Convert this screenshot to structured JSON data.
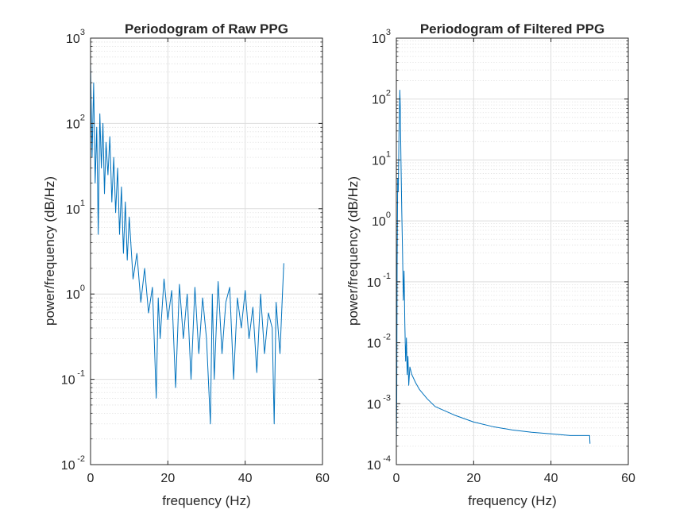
{
  "chart_data": [
    {
      "type": "line",
      "title": "Periodogram of Raw PPG",
      "xlabel": "frequency (Hz)",
      "ylabel": "power/frequency (dB/Hz)",
      "xlim": [
        0,
        60
      ],
      "ylim": [
        0.01,
        1000
      ],
      "yscale": "log",
      "xticks": [
        0,
        20,
        40,
        60
      ],
      "yticks": [
        0.01,
        0.1,
        1,
        10,
        100,
        1000
      ],
      "ytick_exponents": [
        "-2",
        "-1",
        "0",
        "1",
        "2",
        "3"
      ],
      "grid": true,
      "line_color": "#0072BD",
      "series": [
        {
          "x": [
            0,
            0.4,
            0.8,
            1.2,
            1.6,
            2.0,
            2.4,
            2.8,
            3.2,
            3.6,
            4.0,
            4.5,
            5.0,
            5.5,
            6.0,
            6.5,
            7.0,
            7.5,
            8.0,
            8.5,
            9.0,
            9.5,
            10,
            11,
            12,
            13,
            14,
            15,
            16,
            17,
            17.5,
            18,
            19,
            20,
            21,
            22,
            23,
            24,
            25,
            26,
            27,
            28,
            29,
            30,
            31,
            31.5,
            32,
            33,
            34,
            35,
            36,
            37,
            38,
            39,
            40,
            41,
            42,
            43,
            44,
            45,
            46,
            47,
            47.5,
            48,
            49,
            49.5,
            50
          ],
          "values": [
            500,
            40,
            300,
            20,
            90,
            5,
            130,
            30,
            100,
            15,
            60,
            25,
            70,
            12,
            40,
            9,
            30,
            5,
            18,
            3,
            12,
            2.5,
            8,
            1.5,
            3,
            0.8,
            2,
            0.6,
            1.2,
            0.06,
            0.9,
            0.3,
            1.5,
            0.5,
            1.1,
            0.08,
            1.3,
            0.3,
            1.0,
            0.1,
            1.2,
            0.2,
            0.9,
            0.3,
            0.03,
            1.0,
            0.1,
            1.4,
            0.2,
            0.8,
            1.2,
            0.1,
            0.9,
            0.4,
            1.1,
            0.3,
            0.7,
            0.12,
            1.0,
            0.2,
            0.6,
            0.4,
            0.03,
            0.8,
            0.2,
            0.7,
            2.3
          ]
        }
      ]
    },
    {
      "type": "line",
      "title": "Periodogram of Filtered PPG",
      "xlabel": "frequency (Hz)",
      "ylabel": "power/frequency (dB/Hz)",
      "xlim": [
        0,
        60
      ],
      "ylim": [
        0.0001,
        1000
      ],
      "yscale": "log",
      "xticks": [
        0,
        20,
        40,
        60
      ],
      "yticks": [
        0.0001,
        0.001,
        0.01,
        0.1,
        1,
        10,
        100,
        1000
      ],
      "ytick_exponents": [
        "-4",
        "-3",
        "-2",
        "-1",
        "0",
        "1",
        "2",
        "3"
      ],
      "grid": true,
      "line_color": "#0072BD",
      "series": [
        {
          "x": [
            0,
            0.1,
            0.2,
            0.35,
            0.5,
            0.7,
            0.9,
            1.0,
            1.2,
            1.4,
            1.6,
            1.8,
            2.0,
            2.2,
            2.4,
            2.6,
            2.8,
            3.0,
            3.2,
            3.5,
            4,
            5,
            6,
            8,
            10,
            15,
            20,
            25,
            30,
            35,
            40,
            45,
            50,
            50.1
          ],
          "values": [
            0.0002,
            0.001,
            0.2,
            5,
            3,
            30,
            140,
            80,
            10,
            1.5,
            0.3,
            0.05,
            0.15,
            0.02,
            0.005,
            0.012,
            0.003,
            0.006,
            0.002,
            0.004,
            0.003,
            0.0022,
            0.0017,
            0.0012,
            0.0009,
            0.00065,
            0.0005,
            0.00042,
            0.00037,
            0.00034,
            0.00032,
            0.0003,
            0.0003,
            0.00022
          ]
        }
      ]
    }
  ]
}
